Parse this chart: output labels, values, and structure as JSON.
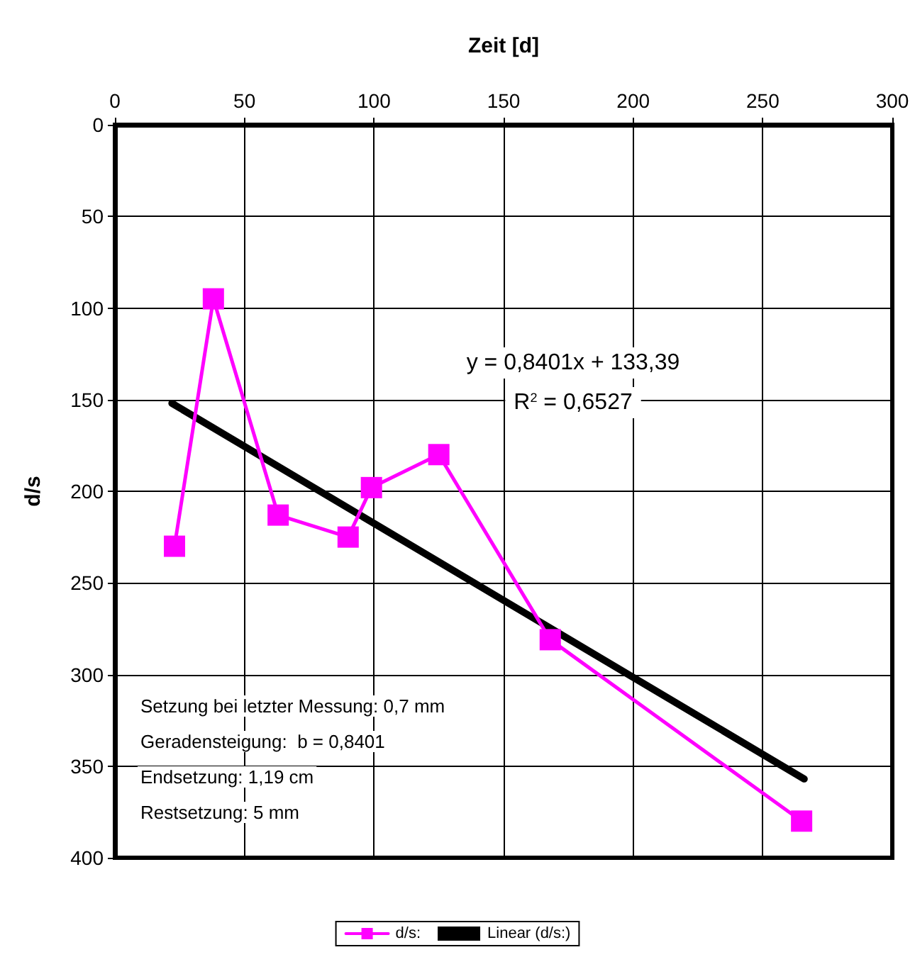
{
  "chart_data": {
    "type": "line",
    "xlabel": "Zeit [d]",
    "ylabel": "d/s",
    "xlim": [
      0,
      300
    ],
    "xticks": [
      0,
      50,
      100,
      150,
      200,
      250,
      300
    ],
    "ylim": [
      400,
      0
    ],
    "yticks": [
      0,
      50,
      100,
      150,
      200,
      250,
      300,
      350,
      400
    ],
    "grid": true,
    "legend": "bottom",
    "marker": "square",
    "line_style": "solid",
    "series": [
      {
        "name": "d/s:",
        "color": "#ff00ff",
        "x": [
          23,
          38,
          63,
          90,
          99,
          125,
          168,
          265
        ],
        "values": [
          230,
          95,
          213,
          225,
          198,
          180,
          281,
          380
        ]
      },
      {
        "name": "Linear (d/s:)",
        "type": "line",
        "marker": "none",
        "color": "#000000",
        "x": [
          22,
          266
        ],
        "values": [
          152,
          357
        ]
      }
    ],
    "annotations": [
      "y = 0,8401x + 133,39",
      "R$^{2}$ = 0,6527",
      "Setzung bei letzter Messung: 0,7 mm",
      "Geradensteigung:  b = 0,8401",
      "Endsetzung: 1,19 cm",
      "Restsetzung: 5 mm"
    ]
  }
}
